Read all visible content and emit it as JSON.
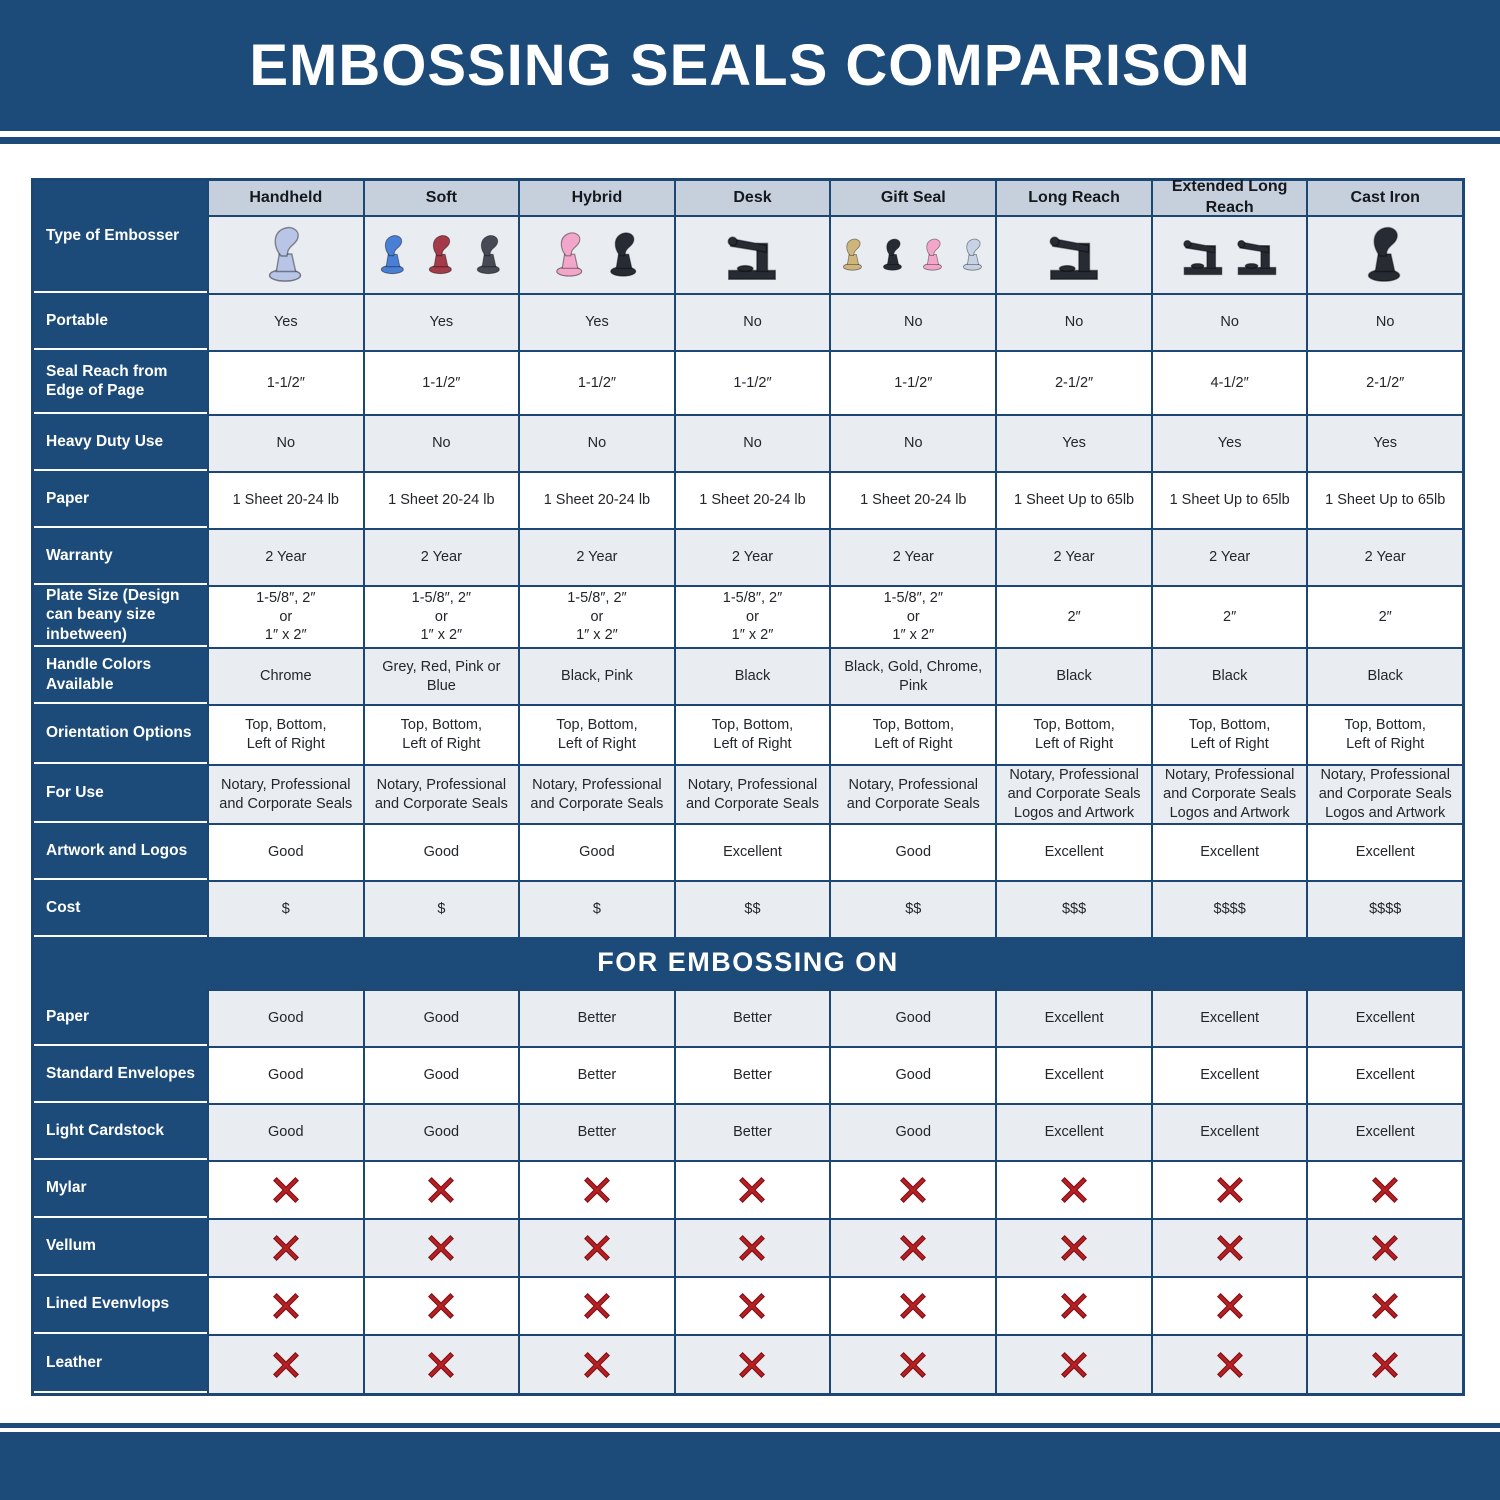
{
  "title": "EMBOSSING SEALS COMPARISON",
  "embossing_section_title": "FOR EMBOSSING ON",
  "type_column_label": "Type of Embosser",
  "columns": [
    "Handheld",
    "Soft",
    "Hybrid",
    "Desk",
    "Gift Seal",
    "Long Reach",
    "Extended Long Reach",
    "Cast Iron"
  ],
  "embossers": [
    {
      "name": "handheld-embosser",
      "style": "hand",
      "colors": [
        "#b9c5e6"
      ]
    },
    {
      "name": "soft-embosser",
      "style": "hand",
      "colors": [
        "#4a7fd6",
        "#a53a49",
        "#454a55"
      ]
    },
    {
      "name": "hybrid-embosser",
      "style": "hand",
      "colors": [
        "#f2a6ca",
        "#272b33"
      ]
    },
    {
      "name": "desk-embosser",
      "style": "desk",
      "colors": [
        "#272b33"
      ]
    },
    {
      "name": "gift-seal-embosser",
      "style": "hand",
      "colors": [
        "#cdb57c",
        "#272b33",
        "#f2a6ca",
        "#c7d2e4"
      ]
    },
    {
      "name": "long-reach-embosser",
      "style": "desk",
      "colors": [
        "#272b33"
      ]
    },
    {
      "name": "extended-long-reach-embosser",
      "style": "desk",
      "colors": [
        "#272b33",
        "#272b33"
      ]
    },
    {
      "name": "cast-iron-embosser",
      "style": "hand",
      "colors": [
        "#272b33"
      ]
    }
  ],
  "spec_rows": [
    {
      "label": "Portable",
      "cell_type": "text",
      "values": [
        "Yes",
        "Yes",
        "Yes",
        "No",
        "No",
        "No",
        "No",
        "No"
      ]
    },
    {
      "label": "Seal Reach from Edge of Page",
      "cell_type": "text",
      "values": [
        "1-1/2″",
        "1-1/2″",
        "1-1/2″",
        "1-1/2″",
        "1-1/2″",
        "2-1/2″",
        "4-1/2″",
        "2-1/2″"
      ]
    },
    {
      "label": "Heavy Duty Use",
      "cell_type": "text",
      "values": [
        "No",
        "No",
        "No",
        "No",
        "No",
        "Yes",
        "Yes",
        "Yes"
      ]
    },
    {
      "label": "Paper",
      "cell_type": "text",
      "values": [
        "1 Sheet 20-24 lb",
        "1 Sheet 20-24 lb",
        "1 Sheet 20-24 lb",
        "1 Sheet 20-24 lb",
        "1 Sheet 20-24 lb",
        "1 Sheet Up to 65lb",
        "1 Sheet Up to 65lb",
        "1 Sheet Up to 65lb"
      ]
    },
    {
      "label": "Warranty",
      "cell_type": "text",
      "values": [
        "2 Year",
        "2 Year",
        "2 Year",
        "2 Year",
        "2 Year",
        "2 Year",
        "2 Year",
        "2 Year"
      ]
    },
    {
      "label": "Plate Size (Design can beany size inbetween)",
      "cell_type": "text",
      "values": [
        "1-5/8″, 2″\nor\n1″ x 2″",
        "1-5/8″, 2″\nor\n1″ x 2″",
        "1-5/8″, 2″\nor\n1″ x 2″",
        "1-5/8″, 2″\nor\n1″ x 2″",
        "1-5/8″, 2″\nor\n1″ x 2″",
        "2″",
        "2″",
        "2″"
      ]
    },
    {
      "label": "Handle Colors Available",
      "cell_type": "text",
      "values": [
        "Chrome",
        "Grey, Red, Pink or Blue",
        "Black, Pink",
        "Black",
        "Black, Gold, Chrome, Pink",
        "Black",
        "Black",
        "Black"
      ]
    },
    {
      "label": "Orientation Options",
      "cell_type": "text",
      "values": [
        "Top, Bottom,\nLeft of Right",
        "Top, Bottom,\nLeft of Right",
        "Top, Bottom,\nLeft of Right",
        "Top, Bottom,\nLeft of Right",
        "Top, Bottom,\nLeft of Right",
        "Top, Bottom,\nLeft of Right",
        "Top, Bottom,\nLeft of Right",
        "Top, Bottom,\nLeft of Right"
      ]
    },
    {
      "label": "For Use",
      "cell_type": "text",
      "values": [
        "Notary, Professional\nand Corporate Seals",
        "Notary, Professional\nand Corporate Seals",
        "Notary, Professional\nand Corporate Seals",
        "Notary, Professional\nand Corporate Seals",
        "Notary, Professional\nand Corporate Seals",
        "Notary, Professional\nand Corporate Seals\nLogos and Artwork",
        "Notary, Professional\nand Corporate Seals\nLogos and Artwork",
        "Notary, Professional\nand Corporate Seals\nLogos and Artwork"
      ]
    },
    {
      "label": "Artwork and Logos",
      "cell_type": "text",
      "values": [
        "Good",
        "Good",
        "Good",
        "Excellent",
        "Good",
        "Excellent",
        "Excellent",
        "Excellent"
      ]
    },
    {
      "label": "Cost",
      "cell_type": "text",
      "values": [
        "$",
        "$",
        "$",
        "$$",
        "$$",
        "$$$",
        "$$$$",
        "$$$$"
      ]
    }
  ],
  "embossing_rows": [
    {
      "label": "Paper",
      "cell_type": "text",
      "values": [
        "Good",
        "Good",
        "Better",
        "Better",
        "Good",
        "Excellent",
        "Excellent",
        "Excellent"
      ]
    },
    {
      "label": "Standard Envelopes",
      "cell_type": "text",
      "values": [
        "Good",
        "Good",
        "Better",
        "Better",
        "Good",
        "Excellent",
        "Excellent",
        "Excellent"
      ]
    },
    {
      "label": "Light Cardstock",
      "cell_type": "text",
      "values": [
        "Good",
        "Good",
        "Better",
        "Better",
        "Good",
        "Excellent",
        "Excellent",
        "Excellent"
      ]
    },
    {
      "label": "Mylar",
      "cell_type": "red-x-icon",
      "values": [
        "no",
        "no",
        "no",
        "no",
        "no",
        "no",
        "no",
        "no"
      ]
    },
    {
      "label": "Vellum",
      "cell_type": "red-x-icon",
      "values": [
        "no",
        "no",
        "no",
        "no",
        "no",
        "no",
        "no",
        "no"
      ]
    },
    {
      "label": "Lined Evenvlops",
      "cell_type": "red-x-icon",
      "values": [
        "no",
        "no",
        "no",
        "no",
        "no",
        "no",
        "no",
        "no"
      ]
    },
    {
      "label": "Leather",
      "cell_type": "red-x-icon",
      "values": [
        "no",
        "no",
        "no",
        "no",
        "no",
        "no",
        "no",
        "no"
      ]
    }
  ],
  "colors": {
    "navy_band": "#1d4b79",
    "grid_line": "#1c4673",
    "header_row_bg": "#c6d0dc",
    "alt_cell_bg": "#e9edf2",
    "red_x": "#b61f24",
    "red_x_dark": "#801215"
  }
}
